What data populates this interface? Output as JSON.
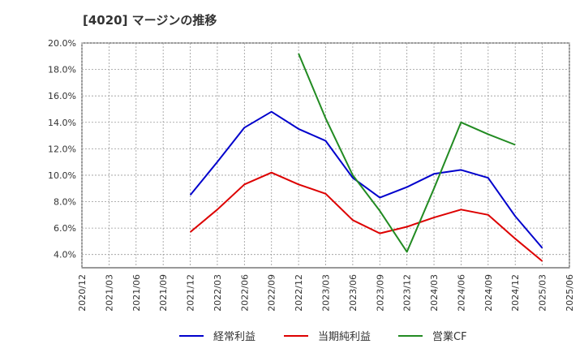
{
  "chart_data": {
    "type": "line",
    "title": "[4020]  マージンの推移",
    "xlabel": "",
    "ylabel": "",
    "x": [
      "2020/12",
      "2021/03",
      "2021/06",
      "2021/09",
      "2021/12",
      "2022/03",
      "2022/06",
      "2022/09",
      "2022/12",
      "2023/03",
      "2023/06",
      "2023/09",
      "2023/12",
      "2024/03",
      "2024/06",
      "2024/09",
      "2024/12",
      "2025/03",
      "2025/06"
    ],
    "ylim": [
      3.0,
      20.0
    ],
    "yticks": [
      4.0,
      6.0,
      8.0,
      10.0,
      12.0,
      14.0,
      16.0,
      18.0,
      20.0
    ],
    "ytick_labels": [
      "4.0%",
      "6.0%",
      "8.0%",
      "10.0%",
      "12.0%",
      "14.0%",
      "16.0%",
      "18.0%",
      "20.0%"
    ],
    "grid": true,
    "legend_position": "bottom",
    "series": [
      {
        "name": "経常利益",
        "color": "#0000cc",
        "values": [
          null,
          null,
          null,
          null,
          8.5,
          11.0,
          13.6,
          14.8,
          13.5,
          12.6,
          9.8,
          8.3,
          9.1,
          10.1,
          10.4,
          9.8,
          6.9,
          4.5,
          null
        ]
      },
      {
        "name": "当期純利益",
        "color": "#dd0000",
        "values": [
          null,
          null,
          null,
          null,
          5.7,
          7.4,
          9.3,
          10.2,
          9.3,
          8.6,
          6.6,
          5.6,
          6.1,
          6.8,
          7.4,
          7.0,
          5.2,
          3.5,
          null
        ]
      },
      {
        "name": "営業CF",
        "color": "#228b22",
        "values": [
          null,
          null,
          null,
          null,
          null,
          null,
          null,
          null,
          19.2,
          14.3,
          10.0,
          7.3,
          4.2,
          9.0,
          14.0,
          13.1,
          12.3,
          null,
          null
        ]
      }
    ]
  }
}
